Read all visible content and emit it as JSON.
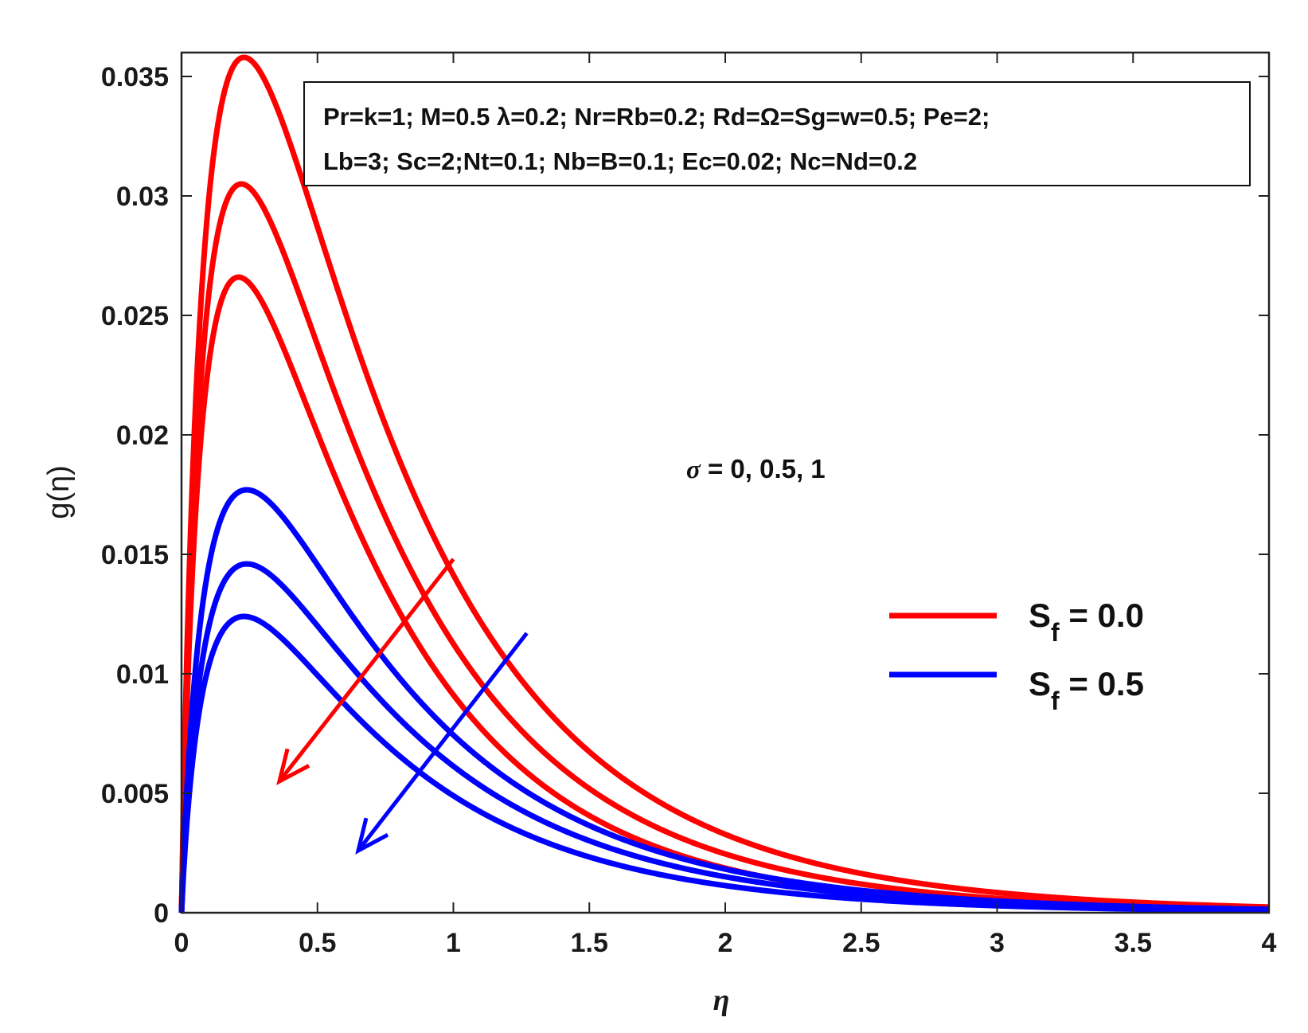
{
  "chart_data": {
    "type": "line",
    "xlabel": "η",
    "ylabel": "g(η)",
    "xlim": [
      0,
      4
    ],
    "ylim": [
      0,
      0.036
    ],
    "xticks": [
      0,
      0.5,
      1,
      1.5,
      2,
      2.5,
      3,
      3.5,
      4
    ],
    "xtick_labels": [
      "0",
      "0.5",
      "1",
      "1.5",
      "2",
      "2.5",
      "3",
      "3.5",
      "4"
    ],
    "yticks": [
      0,
      0.005,
      0.01,
      0.015,
      0.02,
      0.025,
      0.03,
      0.035
    ],
    "ytick_labels": [
      "0",
      "0.005",
      "0.01",
      "0.015",
      "0.02",
      "0.025",
      "0.03",
      "0.035"
    ],
    "grid": false,
    "parameters_box": {
      "line1": "Pr=k=1; M=0.5 λ=0.2; Nr=Rb=0.2; Rd=Ω=Sg=w=0.5; Pe=2;",
      "line2": "Lb=3; Sc=2;Nt=0.1; Nb=B=0.1; Ec=0.02; Nc=Nd=0.2"
    },
    "annotation": {
      "symbol": "σ",
      "text": " = 0, 0.5, 1"
    },
    "legend": {
      "placement": "right",
      "entries": [
        {
          "label": "S",
          "subscript": "f",
          "suffix": " = 0.0",
          "color": "#ff0000"
        },
        {
          "label": "S",
          "subscript": "f",
          "suffix": " = 0.5",
          "color": "#0000ff"
        }
      ]
    },
    "series": [
      {
        "name": "S_f = 0.0, σ = 0",
        "group": "S_f = 0.0",
        "color": "#ff0000",
        "peak": 0.0358,
        "peak_x": 0.23
      },
      {
        "name": "S_f = 0.0, σ = 0.5",
        "group": "S_f = 0.0",
        "color": "#ff0000",
        "peak": 0.0305,
        "peak_x": 0.22
      },
      {
        "name": "S_f = 0.0, σ = 1",
        "group": "S_f = 0.0",
        "color": "#ff0000",
        "peak": 0.0266,
        "peak_x": 0.21
      },
      {
        "name": "S_f = 0.5, σ = 0",
        "group": "S_f = 0.5",
        "color": "#0000ff",
        "peak": 0.0177,
        "peak_x": 0.24
      },
      {
        "name": "S_f = 0.5, σ = 0.5",
        "group": "S_f = 0.5",
        "color": "#0000ff",
        "peak": 0.0146,
        "peak_x": 0.24
      },
      {
        "name": "S_f = 0.5, σ = 1",
        "group": "S_f = 0.5",
        "color": "#0000ff",
        "peak": 0.0124,
        "peak_x": 0.23
      }
    ],
    "arrows": [
      {
        "name": "red-trend-arrow",
        "color": "#ff0000",
        "from": [
          1.0,
          0.0148
        ],
        "to": [
          0.36,
          0.0055
        ]
      },
      {
        "name": "blue-trend-arrow",
        "color": "#0000ff",
        "from": [
          1.27,
          0.0117
        ],
        "to": [
          0.65,
          0.0026
        ]
      }
    ]
  }
}
